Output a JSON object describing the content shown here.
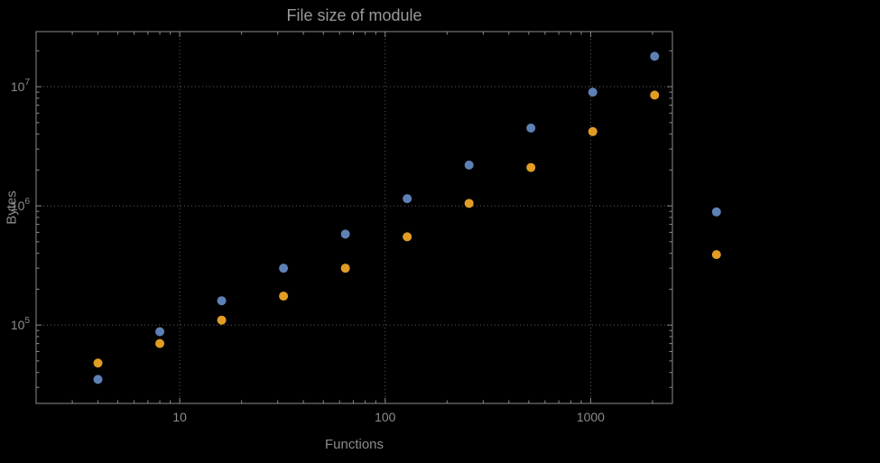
{
  "chart_data": {
    "type": "scatter",
    "title": "File size of module",
    "xlabel": "Functions",
    "ylabel": "Bytes",
    "x_axis_scale": "log",
    "y_axis_scale": "log",
    "xlim": [
      2.0,
      2500
    ],
    "ylim": [
      22000.0,
      29000000.0
    ],
    "x_ticks": [
      10,
      100,
      1000
    ],
    "x_tick_labels": [
      "10",
      "100",
      "1000"
    ],
    "y_ticks": [
      100000.0,
      1000000.0,
      10000000.0
    ],
    "y_tick_exponents": [
      "5",
      "6",
      "7"
    ],
    "grid": "dotted-at-major-ticks",
    "legend": "none",
    "series": [
      {
        "name": "blue",
        "color": "#5e81b5",
        "points": [
          [
            4,
            35000.0
          ],
          [
            8,
            88000.0
          ],
          [
            16,
            160000.0
          ],
          [
            32,
            300000.0
          ],
          [
            64,
            580000.0
          ],
          [
            128,
            1150000.0
          ],
          [
            256,
            2200000.0
          ],
          [
            512,
            4500000.0
          ],
          [
            1024,
            9000000.0
          ],
          [
            2048,
            18000000.0
          ],
          [
            4096,
            890000.0
          ]
        ]
      },
      {
        "name": "orange",
        "color": "#e19c24",
        "points": [
          [
            4,
            48000.0
          ],
          [
            8,
            70000.0
          ],
          [
            16,
            110000.0
          ],
          [
            32,
            175000.0
          ],
          [
            64,
            300000.0
          ],
          [
            128,
            550000.0
          ],
          [
            256,
            1050000.0
          ],
          [
            512,
            2100000.0
          ],
          [
            1024,
            4200000.0
          ],
          [
            2048,
            8500000.0
          ],
          [
            4096,
            390000.0
          ]
        ]
      }
    ],
    "colors": {
      "background": "#000000",
      "grid": "#5a5a5a",
      "frame": "#8c8c8c",
      "text": "#8c8c8c",
      "title": "#9a9a9a"
    }
  }
}
